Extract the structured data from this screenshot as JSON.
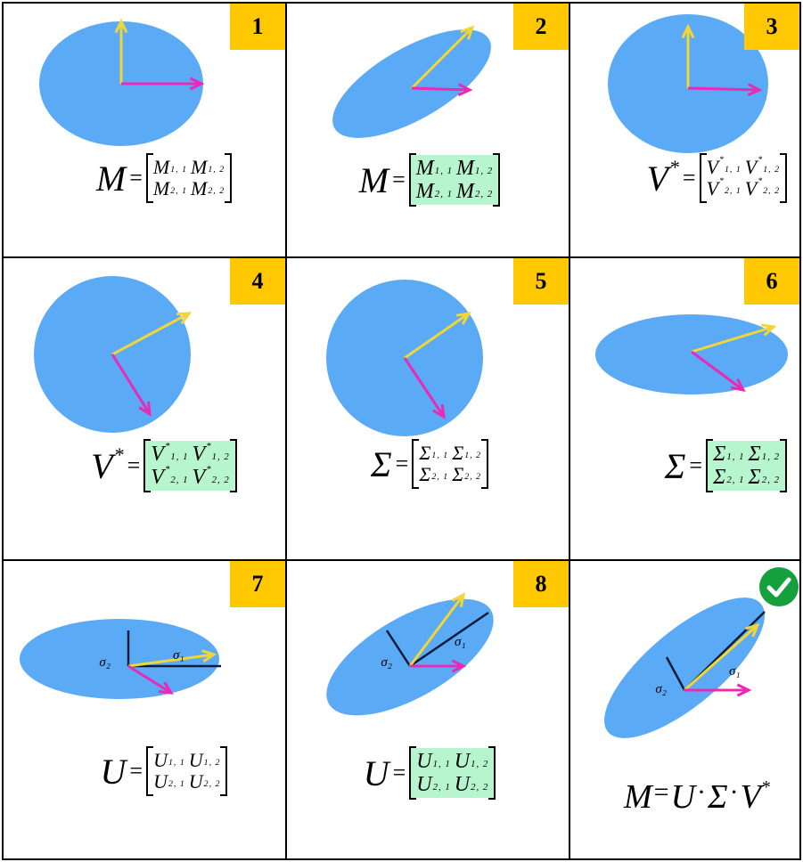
{
  "colors": {
    "ellipse": "#5aaaf5",
    "u_vector": "#f2d637",
    "v_vector": "#ec28b6",
    "axis_line": "#0a1a3a",
    "badge": "#ffc800",
    "highlight": "#b7f5cf",
    "check_circle": "#14a03c"
  },
  "icons": {
    "check": "check-circle-icon"
  },
  "panels": [
    {
      "number": "1",
      "lhs": "M",
      "lhs_sup": "",
      "matrix_symbol": "M",
      "matrix_sup": "",
      "subscripts": [
        "1, 1",
        "1, 2",
        "2, 1",
        "2, 2"
      ],
      "highlighted": false
    },
    {
      "number": "2",
      "lhs": "M",
      "lhs_sup": "",
      "matrix_symbol": "M",
      "matrix_sup": "",
      "subscripts": [
        "1, 1",
        "1, 2",
        "2, 1",
        "2, 2"
      ],
      "highlighted": true
    },
    {
      "number": "3",
      "lhs": "V",
      "lhs_sup": "*",
      "matrix_symbol": "V",
      "matrix_sup": "*",
      "subscripts": [
        "1, 1",
        "1, 2",
        "2, 1",
        "2, 2"
      ],
      "highlighted": false
    },
    {
      "number": "4",
      "lhs": "V",
      "lhs_sup": "*",
      "matrix_symbol": "V",
      "matrix_sup": "*",
      "subscripts": [
        "1, 1",
        "1, 2",
        "2, 1",
        "2, 2"
      ],
      "highlighted": true
    },
    {
      "number": "5",
      "lhs": "Σ",
      "lhs_sup": "",
      "matrix_symbol": "Σ",
      "matrix_sup": "",
      "subscripts": [
        "1, 1",
        "1, 2",
        "2, 1",
        "2, 2"
      ],
      "highlighted": false
    },
    {
      "number": "6",
      "lhs": "Σ",
      "lhs_sup": "",
      "matrix_symbol": "Σ",
      "matrix_sup": "",
      "subscripts": [
        "1, 1",
        "1, 2",
        "2, 1",
        "2, 2"
      ],
      "highlighted": true
    },
    {
      "number": "7",
      "lhs": "U",
      "lhs_sup": "",
      "matrix_symbol": "U",
      "matrix_sup": "",
      "subscripts": [
        "1, 1",
        "1, 2",
        "2, 1",
        "2, 2"
      ],
      "highlighted": false,
      "sigma_labels": [
        "σ₁",
        "σ₂"
      ]
    },
    {
      "number": "8",
      "lhs": "U",
      "lhs_sup": "",
      "matrix_symbol": "U",
      "matrix_sup": "",
      "subscripts": [
        "1, 1",
        "1, 2",
        "2, 1",
        "2, 2"
      ],
      "highlighted": true,
      "sigma_labels": [
        "σ₁",
        "σ₂"
      ]
    },
    {
      "number": "",
      "final_equation": [
        "M",
        "=",
        "U",
        "·",
        "Σ",
        "·",
        "V",
        "*"
      ],
      "sigma_labels": [
        "σ₁",
        "σ₂"
      ]
    }
  ]
}
